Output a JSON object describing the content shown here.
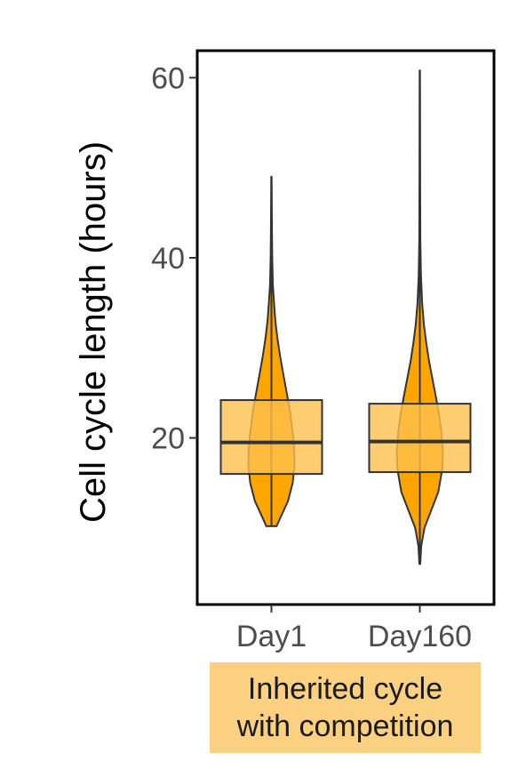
{
  "chart_data": {
    "type": "violin+box",
    "title": "",
    "xlabel": "",
    "ylabel": "Cell cycle length (hours)",
    "ylim": [
      1.5,
      63
    ],
    "yticks": [
      20,
      40,
      60
    ],
    "grid": false,
    "facet": {
      "label_lines": [
        "Inherited cycle",
        "with competition"
      ]
    },
    "categories": [
      "Day1",
      "Day160"
    ],
    "series": [
      {
        "category": "Day1",
        "min": 10.2,
        "q1": 16.0,
        "median": 19.5,
        "q3": 24.2,
        "max": 49.0,
        "violin_density": [
          [
            10.2,
            0.22
          ],
          [
            11.5,
            0.45
          ],
          [
            13.0,
            0.72
          ],
          [
            15.0,
            0.92
          ],
          [
            17.0,
            1.0
          ],
          [
            19.0,
            0.98
          ],
          [
            21.0,
            0.9
          ],
          [
            23.0,
            0.8
          ],
          [
            25.0,
            0.66
          ],
          [
            27.0,
            0.52
          ],
          [
            29.0,
            0.38
          ],
          [
            31.0,
            0.26
          ],
          [
            33.0,
            0.17
          ],
          [
            35.0,
            0.11
          ],
          [
            37.0,
            0.06
          ],
          [
            40.0,
            0.035
          ],
          [
            44.0,
            0.02
          ],
          [
            49.0,
            0.008
          ]
        ]
      },
      {
        "category": "Day160",
        "min": 6.0,
        "q1": 16.2,
        "median": 19.6,
        "q3": 23.8,
        "max": 60.8,
        "violin_density": [
          [
            6.0,
            0.02
          ],
          [
            8.0,
            0.06
          ],
          [
            10.0,
            0.2
          ],
          [
            12.0,
            0.5
          ],
          [
            14.0,
            0.8
          ],
          [
            16.5,
            0.97
          ],
          [
            18.5,
            1.0
          ],
          [
            20.5,
            0.94
          ],
          [
            22.5,
            0.84
          ],
          [
            24.5,
            0.7
          ],
          [
            26.5,
            0.55
          ],
          [
            28.5,
            0.4
          ],
          [
            30.5,
            0.28
          ],
          [
            32.5,
            0.18
          ],
          [
            35.0,
            0.1
          ],
          [
            38.0,
            0.05
          ],
          [
            42.0,
            0.025
          ],
          [
            48.0,
            0.015
          ],
          [
            55.0,
            0.01
          ],
          [
            60.8,
            0.006
          ]
        ]
      }
    ],
    "colors": {
      "violin_fill": "#FFA500",
      "box_fill": "#FFC04D",
      "outline": "#333333",
      "facet_strip": "#FBD181",
      "frame": "#000000"
    }
  }
}
